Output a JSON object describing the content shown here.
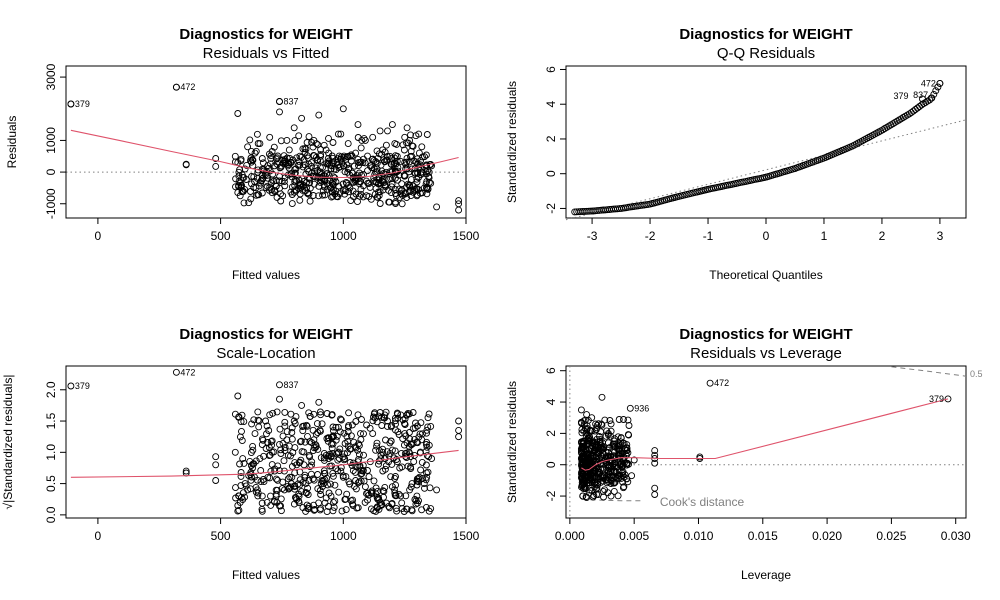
{
  "colors": {
    "point": "#000000",
    "smooth": "#DF536B",
    "ref": "#808080"
  },
  "chart_data": [
    {
      "type": "scatter",
      "title": "Diagnostics for WEIGHT",
      "subtitle": "Residuals vs Fitted",
      "xlabel": "Fitted values",
      "ylabel": "Residuals",
      "xlim": [
        -130,
        1500
      ],
      "ylim": [
        -1450,
        3350
      ],
      "xticks": [
        0,
        500,
        1000,
        1500
      ],
      "xticklabels": [
        "0",
        "500",
        "1000",
        "1500"
      ],
      "yticks": [
        -1000,
        0,
        1000,
        3000
      ],
      "yticklabels": [
        "-1000",
        "0",
        "1000",
        "3000"
      ],
      "hline": 0,
      "smooth": {
        "x": [
          -110,
          100,
          300,
          500,
          600,
          700,
          800,
          900,
          1000,
          1100,
          1200,
          1300,
          1400,
          1470
        ],
        "y": [
          1320,
          980,
          650,
          330,
          150,
          0,
          -100,
          -160,
          -170,
          -140,
          -30,
          150,
          330,
          460
        ]
      },
      "labeled_points": [
        {
          "label": "379",
          "x": -110,
          "y": 2150
        },
        {
          "label": "472",
          "x": 320,
          "y": 2680
        },
        {
          "label": "837",
          "x": 740,
          "y": 2230
        }
      ],
      "point_sample": {
        "x": [
          -110,
          320,
          740,
          360,
          360,
          480,
          480,
          560,
          570,
          575,
          580,
          600,
          640,
          650,
          660,
          690,
          700,
          720,
          740,
          760,
          780,
          800,
          820,
          840,
          860,
          880,
          900,
          920,
          940,
          960,
          980,
          1000,
          1020,
          1040,
          1060,
          1080,
          1100,
          1120,
          1140,
          1160,
          1180,
          1200,
          1220,
          1240,
          1260,
          1280,
          1300,
          1320,
          1340,
          1360,
          1380,
          1470,
          1470,
          1470,
          570,
          590,
          610,
          630,
          670,
          710,
          730,
          770,
          790,
          810,
          830,
          850,
          870,
          890,
          910,
          930,
          950,
          970,
          990,
          1010,
          1030,
          1050,
          1070,
          1090,
          1110,
          1130,
          1150,
          1170,
          1190,
          1210,
          1230,
          1250,
          1270,
          1290,
          1310,
          1330,
          760,
          860,
          960,
          1060,
          1160,
          1260,
          900,
          1000,
          1200,
          1250
        ],
        "y": [
          2150,
          2680,
          2230,
          250,
          230,
          430,
          180,
          500,
          1850,
          -300,
          -750,
          100,
          600,
          -200,
          900,
          -450,
          1100,
          200,
          1900,
          -300,
          700,
          1400,
          -250,
          400,
          -700,
          1000,
          1800,
          -100,
          600,
          -400,
          1200,
          200,
          900,
          -600,
          1500,
          300,
          -350,
          1100,
          -800,
          700,
          1300,
          -200,
          500,
          -1000,
          1400,
          100,
          -750,
          800,
          -300,
          200,
          -1100,
          -900,
          -1000,
          -1200,
          300,
          -600,
          800,
          400,
          -100,
          650,
          -800,
          1000,
          -150,
          450,
          1700,
          -500,
          300,
          900,
          -250,
          700,
          100,
          -600,
          1200,
          400,
          -900,
          600,
          -300,
          1000,
          200,
          -700,
          1300,
          -400,
          500,
          900,
          -800,
          300,
          1000,
          -600,
          600,
          -500,
          350,
          250,
          -150,
          400,
          -300,
          100,
          -450,
          2000,
          1500,
          1100
        ]
      }
    },
    {
      "type": "scatter",
      "title": "Diagnostics for WEIGHT",
      "subtitle": "Q-Q Residuals",
      "xlabel": "Theoretical Quantiles",
      "ylabel": "Standardized residuals",
      "xlim": [
        -3.45,
        3.45
      ],
      "ylim": [
        -2.55,
        6.2
      ],
      "xticks": [
        -3,
        -2,
        -1,
        0,
        1,
        2,
        3
      ],
      "xticklabels": [
        "-3",
        "-2",
        "-1",
        "0",
        "1",
        "2",
        "3"
      ],
      "yticks": [
        -2,
        0,
        2,
        4,
        6
      ],
      "yticklabels": [
        "-2",
        "0",
        "2",
        "4",
        "6"
      ],
      "ref_line": {
        "x": [
          -3.45,
          3.45
        ],
        "y": [
          -2.65,
          3.1
        ]
      },
      "labeled_points": [
        {
          "label": "472",
          "x": 3.0,
          "y": 5.2
        },
        {
          "label": "379",
          "x": 2.7,
          "y": 4.3
        },
        {
          "label": "837",
          "x": 2.85,
          "y": 4.35
        }
      ],
      "curve": {
        "x": [
          -3.3,
          -3.0,
          -2.5,
          -2.0,
          -1.5,
          -1.0,
          -0.5,
          0.0,
          0.5,
          1.0,
          1.5,
          2.0,
          2.3,
          2.5,
          2.7,
          2.85,
          3.0
        ],
        "y": [
          -2.2,
          -2.15,
          -2.0,
          -1.75,
          -1.3,
          -0.9,
          -0.55,
          -0.2,
          0.3,
          0.9,
          1.6,
          2.5,
          3.1,
          3.5,
          4.0,
          4.3,
          5.2
        ]
      }
    },
    {
      "type": "scatter",
      "title": "Diagnostics for WEIGHT",
      "subtitle": "Scale-Location",
      "xlabel": "Fitted values",
      "ylabel": "√|Standardized residuals|",
      "xlim": [
        -130,
        1500
      ],
      "ylim": [
        -0.05,
        2.38
      ],
      "xticks": [
        0,
        500,
        1000,
        1500
      ],
      "xticklabels": [
        "0",
        "500",
        "1000",
        "1500"
      ],
      "yticks": [
        0.0,
        0.5,
        1.0,
        1.5,
        2.0
      ],
      "yticklabels": [
        "0.0",
        "0.5",
        "1.0",
        "1.5",
        "2.0"
      ],
      "smooth": {
        "x": [
          -110,
          300,
          500,
          600,
          700,
          800,
          900,
          1000,
          1100,
          1200,
          1300,
          1470
        ],
        "y": [
          0.6,
          0.62,
          0.64,
          0.65,
          0.68,
          0.72,
          0.76,
          0.8,
          0.85,
          0.9,
          0.95,
          1.03
        ]
      },
      "labeled_points": [
        {
          "label": "379",
          "x": -110,
          "y": 2.06
        },
        {
          "label": "472",
          "x": 320,
          "y": 2.28
        },
        {
          "label": "837",
          "x": 740,
          "y": 2.08
        }
      ],
      "point_sample": {
        "x": [
          360,
          360,
          480,
          480,
          480,
          560,
          570,
          575,
          580,
          600,
          640,
          650,
          660,
          690,
          700,
          720,
          740,
          760,
          780,
          800,
          820,
          840,
          860,
          880,
          900,
          920,
          940,
          960,
          980,
          1000,
          1020,
          1040,
          1060,
          1080,
          1100,
          1120,
          1140,
          1160,
          1180,
          1200,
          1220,
          1240,
          1260,
          1280,
          1300,
          1320,
          1340,
          1360,
          1380,
          1470,
          1470,
          1470,
          590,
          610,
          630,
          670,
          710,
          730,
          770,
          790,
          810,
          830,
          850,
          870,
          890,
          910,
          930,
          950,
          970,
          990,
          1010,
          1030,
          1050,
          1070,
          1090,
          1110,
          1130,
          1150,
          1170,
          1190,
          1210,
          1230,
          1250,
          1270,
          1290,
          1310,
          1330,
          570,
          760,
          860,
          960,
          1060,
          1160,
          1260
        ],
        "y": [
          0.7,
          0.67,
          0.93,
          0.8,
          0.55,
          1.0,
          1.9,
          0.3,
          0.2,
          0.5,
          1.3,
          0.4,
          0.9,
          0.2,
          1.6,
          0.7,
          1.85,
          0.4,
          1.1,
          1.5,
          0.3,
          0.8,
          0.1,
          1.2,
          1.8,
          0.5,
          0.9,
          0.2,
          1.4,
          0.6,
          1.1,
          0.15,
          1.6,
          0.7,
          0.35,
          1.3,
          0.25,
          1.0,
          1.5,
          0.45,
          0.85,
          0.1,
          1.6,
          0.5,
          0.3,
          1.2,
          0.6,
          0.9,
          0.4,
          1.5,
          1.35,
          1.25,
          0.9,
          0.4,
          0.75,
          0.3,
          1.0,
          0.2,
          1.2,
          0.6,
          0.8,
          1.75,
          0.35,
          0.65,
          1.1,
          0.5,
          0.95,
          0.3,
          1.4,
          0.7,
          0.25,
          1.05,
          0.55,
          1.3,
          0.45,
          0.85,
          1.55,
          0.2,
          0.9,
          1.15,
          0.35,
          0.75,
          1.3,
          0.4,
          0.95,
          0.6,
          0.5,
          0.15,
          0.7,
          0.55,
          1.25,
          0.85,
          1.05,
          1.15
        ]
      }
    },
    {
      "type": "scatter",
      "title": "Diagnostics for WEIGHT",
      "subtitle": "Residuals vs Leverage",
      "xlabel": "Leverage",
      "ylabel": "Standardized residuals",
      "xlim": [
        -0.0003,
        0.0308
      ],
      "ylim": [
        -3.4,
        6.3
      ],
      "xticks": [
        0.0,
        0.005,
        0.01,
        0.015,
        0.02,
        0.025,
        0.03
      ],
      "xticklabels": [
        "0.000",
        "0.005",
        "0.010",
        "0.015",
        "0.020",
        "0.025",
        "0.030"
      ],
      "yticks": [
        -2,
        0,
        2,
        4,
        6
      ],
      "yticklabels": [
        "-2",
        "0",
        "2",
        "4",
        "6"
      ],
      "hline": 0,
      "vline": 0,
      "legend_text": "Cook's distance",
      "cook_label": "0.5",
      "cook_curve": {
        "x": [
          0.025,
          0.0275,
          0.0308
        ],
        "y": [
          6.25,
          6.0,
          5.65
        ]
      },
      "cook_curve_low": {
        "x": [
          0.0009,
          0.002,
          0.004,
          0.0055
        ],
        "y": [
          -2.2,
          -2.25,
          -2.3,
          -2.3
        ]
      },
      "smooth": {
        "x": [
          0.0009,
          0.0012,
          0.0015,
          0.002,
          0.0025,
          0.003,
          0.004,
          0.005,
          0.007,
          0.0113,
          0.0294
        ],
        "y": [
          -0.2,
          -0.35,
          -0.3,
          0.0,
          0.2,
          0.3,
          0.45,
          0.45,
          0.4,
          0.4,
          4.2
        ]
      },
      "labeled_points": [
        {
          "label": "472",
          "x": 0.0109,
          "y": 5.2
        },
        {
          "label": "936",
          "x": 0.0047,
          "y": 3.6
        },
        {
          "label": "379",
          "x": 0.0294,
          "y": 4.2
        }
      ],
      "point_sample": {
        "x": [
          0.0009,
          0.001,
          0.0011,
          0.0012,
          0.0013,
          0.0014,
          0.0015,
          0.0016,
          0.0017,
          0.0018,
          0.0019,
          0.002,
          0.0021,
          0.0022,
          0.0023,
          0.0024,
          0.0025,
          0.0026,
          0.0027,
          0.0028,
          0.003,
          0.0032,
          0.0034,
          0.0036,
          0.0038,
          0.004,
          0.0042,
          0.0044,
          0.0046,
          0.0048,
          0.005,
          0.0066,
          0.0066,
          0.0066,
          0.0066,
          0.0066,
          0.0066,
          0.0101,
          0.0101,
          0.0009,
          0.001,
          0.0011,
          0.0012,
          0.0013,
          0.0014,
          0.0015,
          0.0016,
          0.0017,
          0.0018,
          0.0019,
          0.002,
          0.0022,
          0.0024,
          0.0026,
          0.0028,
          0.003,
          0.0032,
          0.0035,
          0.0038,
          0.0041,
          0.0044
        ],
        "y": [
          3.5,
          -2.0,
          2.8,
          -1.5,
          3.2,
          0.5,
          -1.8,
          2.2,
          -1.0,
          1.5,
          -0.8,
          2.6,
          0.2,
          -1.9,
          1.8,
          -0.3,
          4.3,
          1.0,
          -1.6,
          0.8,
          2.0,
          -1.2,
          1.3,
          -0.5,
          0.7,
          1.7,
          -1.4,
          0.9,
          2.5,
          -0.7,
          0.3,
          0.9,
          0.6,
          0.4,
          0.1,
          -1.5,
          -1.9,
          0.5,
          0.4,
          0.4,
          -0.9,
          1.2,
          2.3,
          -2.1,
          1.9,
          0.0,
          -0.6,
          3.0,
          0.6,
          -1.2,
          1.1,
          -0.4,
          2.1,
          -1.7,
          0.4,
          1.4,
          -2.0,
          0.2,
          1.0,
          -1.1,
          0.6
        ]
      }
    }
  ]
}
